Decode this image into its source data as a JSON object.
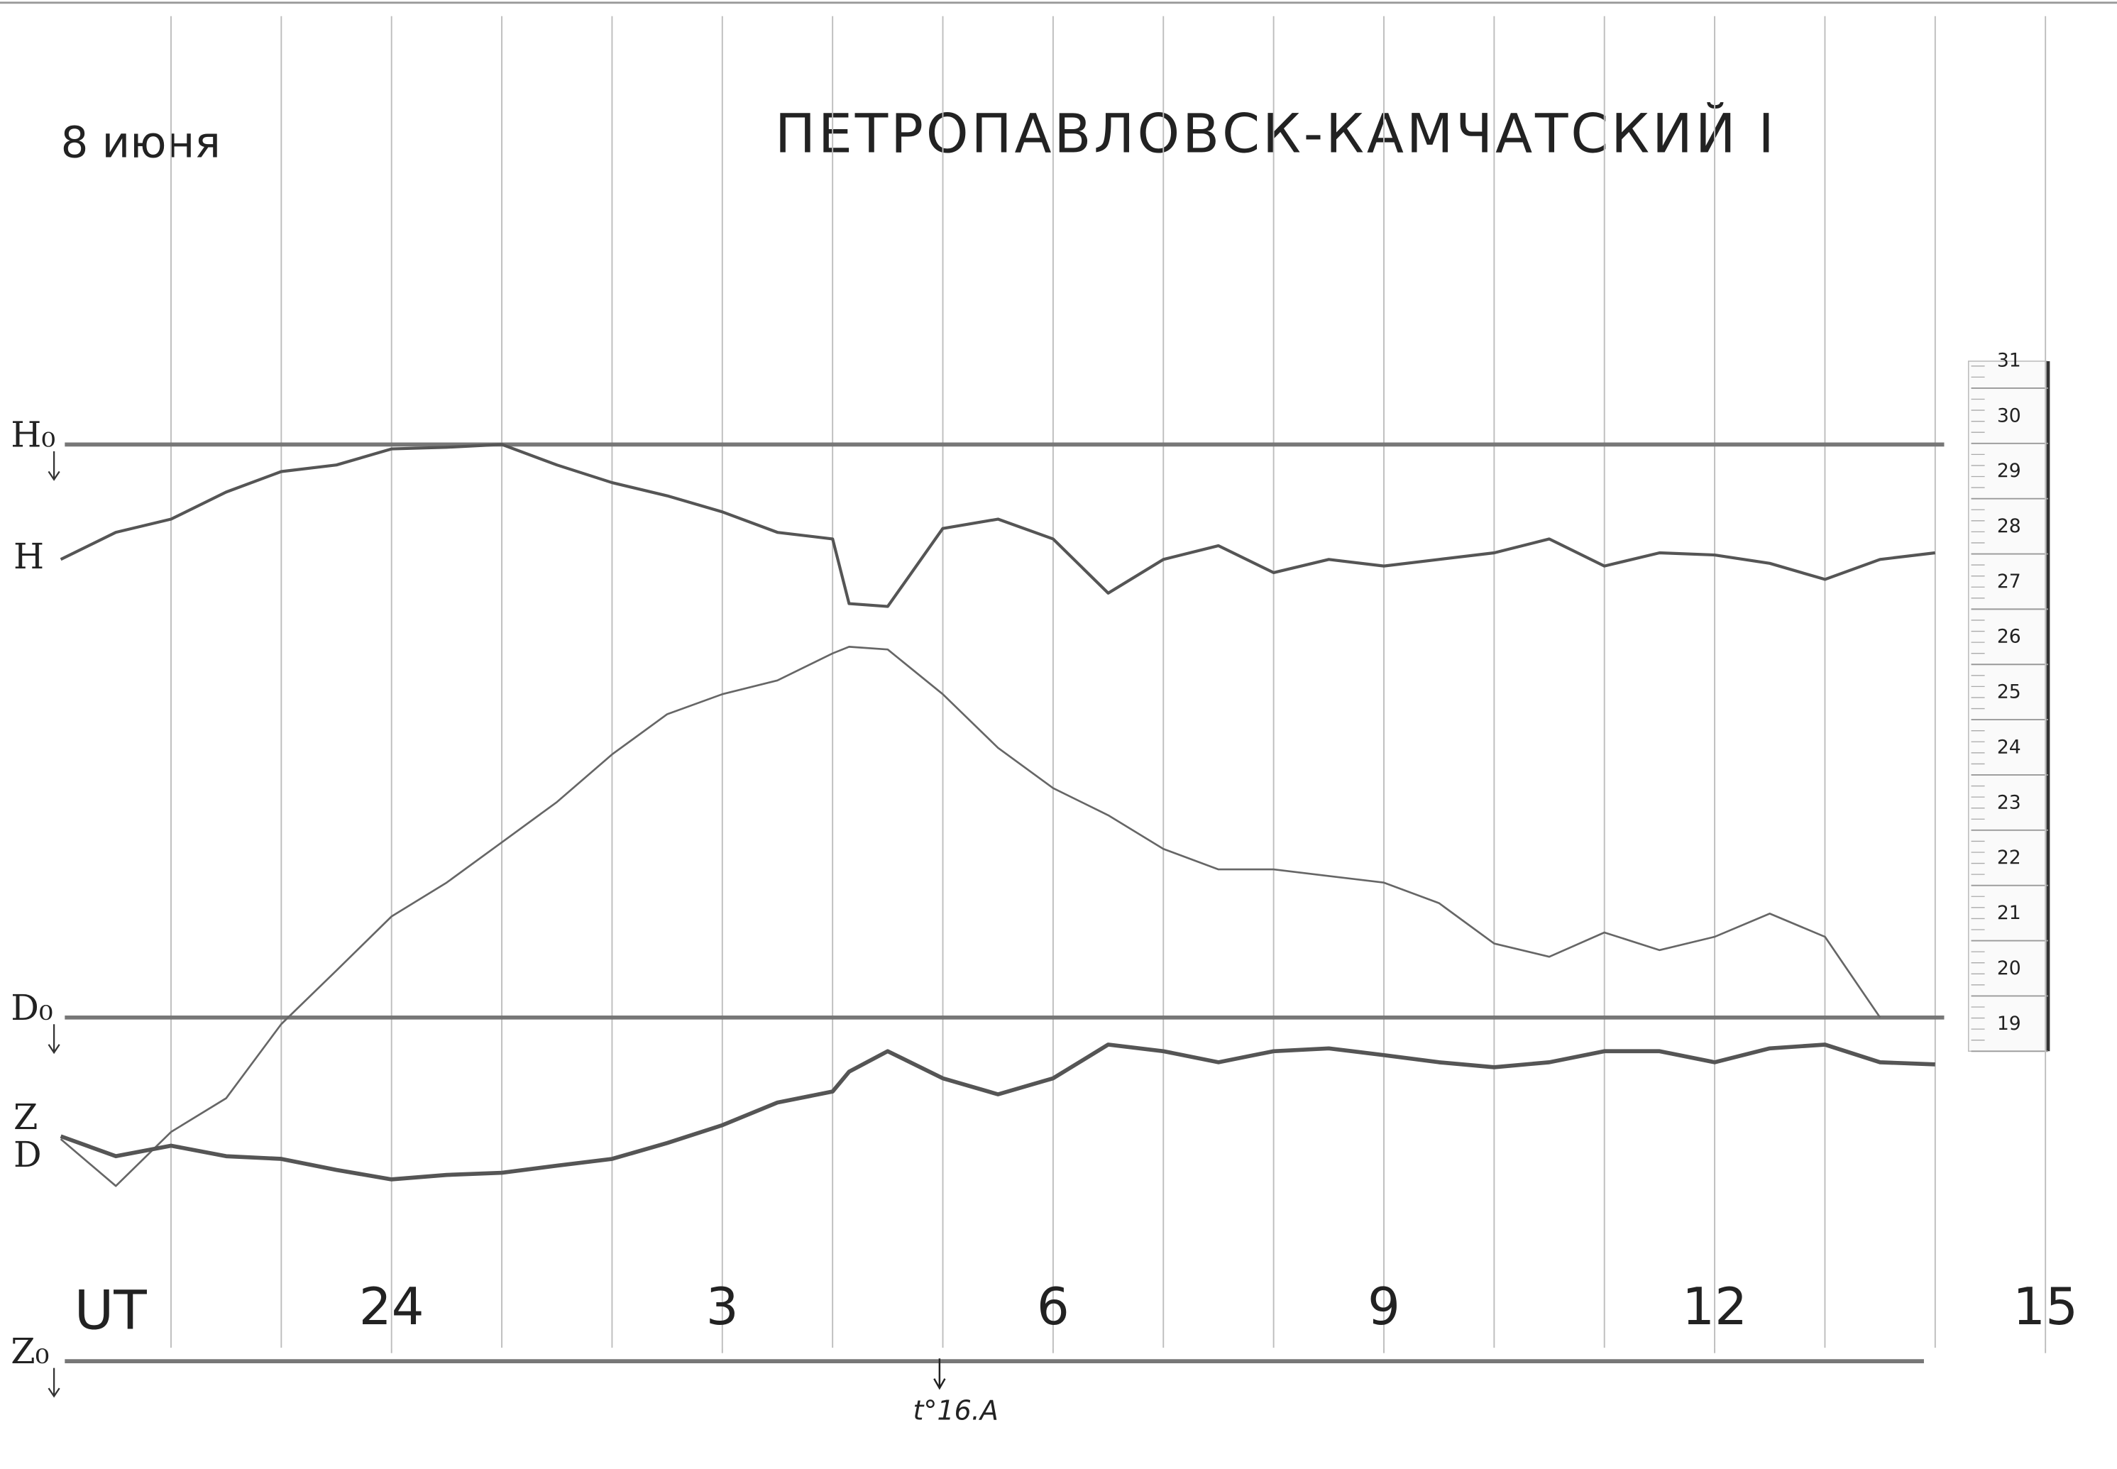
{
  "chart_data": {
    "type": "line",
    "title": "ПЕТРОПАВЛОВСК-КАМЧАТСКИЙ I",
    "subtitle": "8 июня",
    "xlabel": "UT",
    "x": [
      21.0,
      21.5,
      22.0,
      22.5,
      23.0,
      23.5,
      24.0,
      24.5,
      25.0,
      25.5,
      26.0,
      26.5,
      27.0,
      27.5,
      28.0,
      28.15,
      28.5,
      29.0,
      29.5,
      30.0,
      30.5,
      31.0,
      31.5,
      32.0,
      32.5,
      33.0,
      33.5,
      34.0,
      34.5,
      35.0,
      35.5,
      36.0,
      36.5,
      37.0,
      37.5,
      38.0
    ],
    "series": [
      {
        "name": "H",
        "color": "#555555",
        "values": [
          27.9,
          28.39,
          28.63,
          29.12,
          29.49,
          29.61,
          29.9,
          29.93,
          29.98,
          29.61,
          29.29,
          29.05,
          28.76,
          28.39,
          28.27,
          27.1,
          27.05,
          28.46,
          28.63,
          28.27,
          27.29,
          27.9,
          28.15,
          27.66,
          27.9,
          27.78,
          27.9,
          28.02,
          28.27,
          27.78,
          28.02,
          27.98,
          27.83,
          27.54,
          27.9,
          28.02
        ]
      },
      {
        "name": "D",
        "color": "#666666",
        "values": [
          17.41,
          16.56,
          17.54,
          18.15,
          19.49,
          20.46,
          21.44,
          22.05,
          22.78,
          23.51,
          24.37,
          25.1,
          25.46,
          25.71,
          26.2,
          26.32,
          26.27,
          25.46,
          24.49,
          23.76,
          23.27,
          22.66,
          22.29,
          22.29,
          22.17,
          22.05,
          21.68,
          20.95,
          20.71,
          21.15,
          20.83,
          21.07,
          21.49,
          21.07,
          19.61,
          null
        ]
      },
      {
        "name": "Z",
        "color": "#555555",
        "values": [
          17.46,
          17.1,
          17.29,
          17.1,
          17.05,
          16.85,
          16.68,
          16.76,
          16.8,
          16.93,
          17.05,
          17.34,
          17.66,
          18.07,
          18.27,
          18.63,
          19.0,
          18.51,
          18.22,
          18.51,
          19.12,
          19.0,
          18.8,
          19.0,
          19.05,
          18.93,
          18.8,
          18.71,
          18.8,
          19.0,
          19.0,
          18.8,
          19.05,
          19.12,
          18.8,
          18.76
        ]
      }
    ],
    "baselines": [
      {
        "label": "H₀",
        "value": 29.98
      },
      {
        "label": "D₀",
        "value": 19.61
      },
      {
        "label": "Z₀",
        "value": 13.39
      }
    ],
    "annotation": {
      "text": "t°16.A",
      "x": 28.97
    },
    "xlim": [
      21,
      39
    ],
    "xticks": [
      {
        "value": 24,
        "label": "24"
      },
      {
        "value": 27,
        "label": "3"
      },
      {
        "value": 30,
        "label": "6"
      },
      {
        "value": 33,
        "label": "9"
      },
      {
        "value": 36,
        "label": "12"
      },
      {
        "value": 39,
        "label": "15"
      }
    ],
    "xgrid": [
      22,
      23,
      24,
      25,
      26,
      27,
      28,
      29,
      30,
      31,
      32,
      33,
      34,
      35,
      36,
      37,
      38,
      39
    ],
    "ylim": [
      13,
      31.5
    ],
    "yticks": [
      19,
      20,
      21,
      22,
      23,
      24,
      25,
      26,
      27,
      28,
      29,
      30,
      31
    ]
  }
}
